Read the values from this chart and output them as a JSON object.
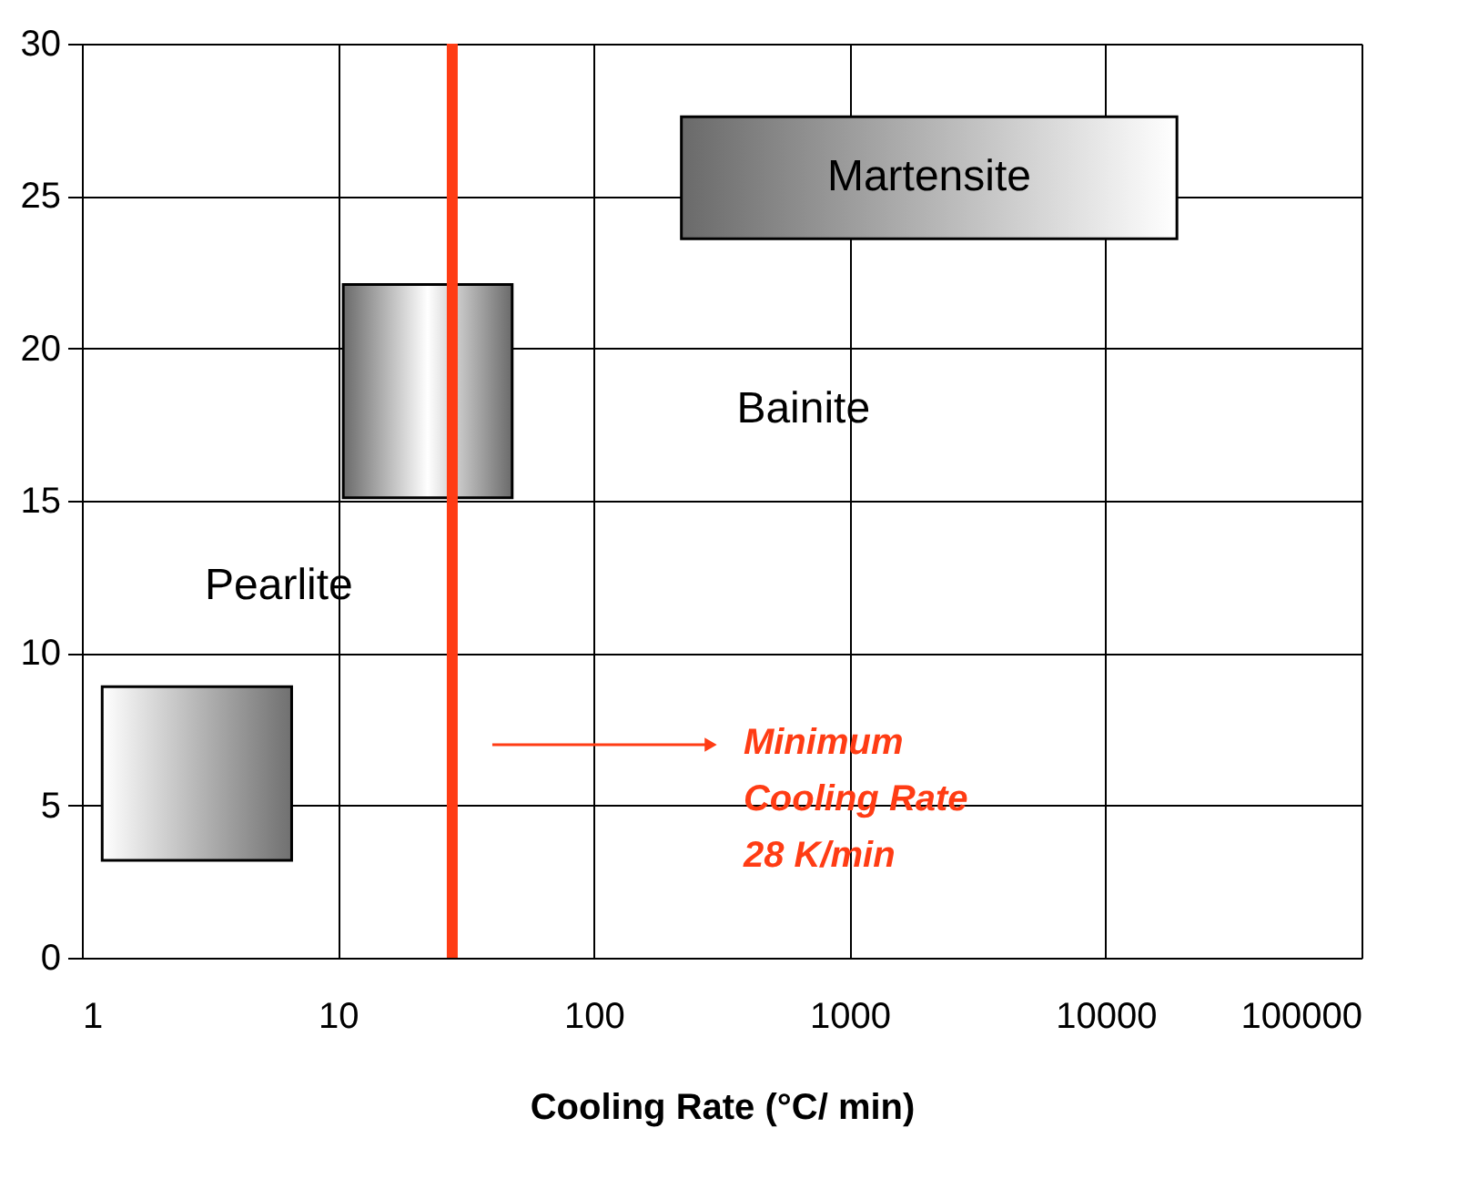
{
  "chart_data": {
    "type": "area",
    "xlabel": "Cooling Rate (°C/ min)",
    "log": "x",
    "xlim": [
      1,
      100000
    ],
    "xticks": [
      1,
      10,
      100,
      1000,
      10000,
      100000
    ],
    "ylim": [
      0,
      30
    ],
    "yticks": [
      0,
      5,
      10,
      15,
      20,
      25,
      30
    ],
    "grid": true,
    "series": [
      {
        "x": [
          1.2,
          6.6
        ],
        "lower": [
          3.2,
          3.2
        ],
        "upper": [
          8.9,
          8.9
        ],
        "values": [
          null,
          null
        ],
        "colors": [
          "#ffffff",
          "#707070"
        ]
      },
      {
        "x": [
          10.5,
          48
        ],
        "lower": [
          15.1,
          15.1
        ],
        "upper": [
          22.1,
          22.1
        ],
        "values": [
          null,
          null
        ],
        "colors": [
          "#6a6a6a",
          "#6a6a6a"
        ]
      },
      {
        "x": [
          220,
          19000
        ],
        "lower": [
          23.6,
          23.6
        ],
        "upper": [
          27.6,
          27.6
        ],
        "values": [
          null,
          null
        ],
        "colors": [
          "#6a6a6a",
          "#ffffff"
        ]
      }
    ],
    "ref_lines": [
      {
        "axis": "x",
        "value": 28,
        "label": "Minimum\nCooling Rate\n28 K/min",
        "color": "#ff3c14"
      }
    ],
    "annotations": [
      "Pearlite",
      "Bainite",
      "Martensite"
    ]
  }
}
